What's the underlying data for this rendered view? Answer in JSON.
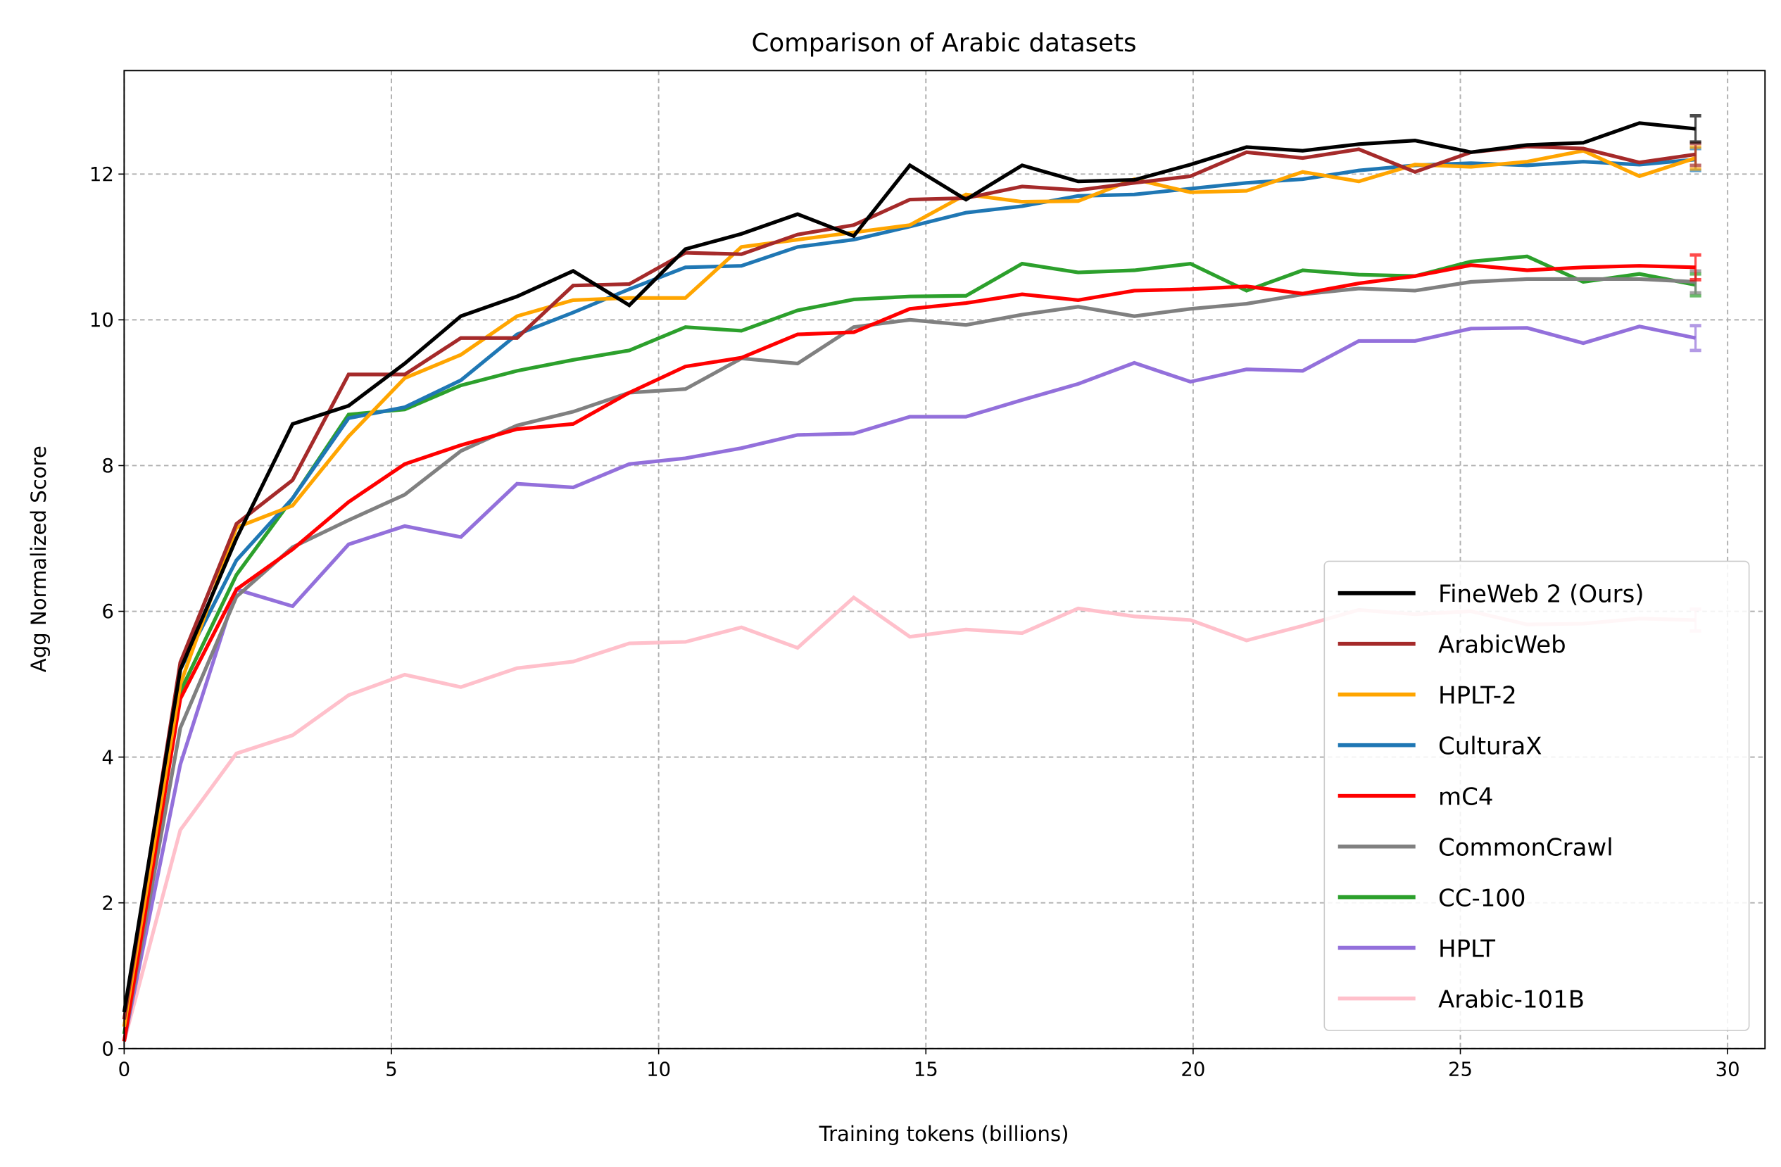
{
  "chart_data": {
    "type": "line",
    "title": "Comparison of Arabic datasets",
    "xlabel": "Training tokens (billions)",
    "ylabel": "Agg Normalized Score",
    "xlim": [
      0,
      30.7
    ],
    "ylim": [
      0,
      13.42
    ],
    "xticks": [
      0,
      5,
      10,
      15,
      20,
      25,
      30
    ],
    "yticks": [
      0,
      2,
      4,
      6,
      8,
      10,
      12
    ],
    "grid": true,
    "legend_position": "bottom-right",
    "x": [
      0,
      1.05,
      2.1,
      3.15,
      4.2,
      5.25,
      6.3,
      7.35,
      8.4,
      9.45,
      10.5,
      11.55,
      12.6,
      13.65,
      14.7,
      15.75,
      16.8,
      17.85,
      18.9,
      19.95,
      21.0,
      22.05,
      23.1,
      24.15,
      25.2,
      26.25,
      27.3,
      28.35,
      29.4
    ],
    "series": [
      {
        "name": "Arabic-101B",
        "color": "#ffc0cb",
        "error": 0.15,
        "values": [
          0.1,
          3.0,
          4.05,
          4.3,
          4.85,
          5.13,
          4.96,
          5.22,
          5.31,
          5.56,
          5.58,
          5.78,
          5.5,
          6.19,
          5.65,
          5.75,
          5.7,
          6.04,
          5.93,
          5.88,
          5.6,
          5.8,
          6.02,
          5.96,
          6.0,
          5.82,
          5.83,
          5.9,
          5.88
        ]
      },
      {
        "name": "HPLT",
        "color": "#9370db",
        "error": 0.17,
        "values": [
          0.1,
          3.9,
          6.3,
          6.07,
          6.92,
          7.17,
          7.02,
          7.75,
          7.7,
          8.02,
          8.1,
          8.24,
          8.42,
          8.44,
          8.67,
          8.67,
          8.9,
          9.12,
          9.41,
          9.15,
          9.32,
          9.3,
          9.71,
          9.71,
          9.88,
          9.89,
          9.68,
          9.91,
          9.75
        ]
      },
      {
        "name": "CC-100",
        "color": "#2ca02c",
        "error": 0.15,
        "values": [
          0.2,
          4.9,
          6.5,
          7.55,
          8.7,
          8.77,
          9.1,
          9.3,
          9.45,
          9.58,
          9.9,
          9.85,
          10.13,
          10.28,
          10.32,
          10.33,
          10.77,
          10.65,
          10.68,
          10.77,
          10.4,
          10.68,
          10.62,
          10.6,
          10.8,
          10.87,
          10.52,
          10.63,
          10.48
        ]
      },
      {
        "name": "CommonCrawl",
        "color": "#808080",
        "error": 0.15,
        "values": [
          0.1,
          4.4,
          6.2,
          6.88,
          7.25,
          7.6,
          8.2,
          8.55,
          8.74,
          9.0,
          9.05,
          9.47,
          9.4,
          9.9,
          10.0,
          9.93,
          10.07,
          10.18,
          10.05,
          10.15,
          10.22,
          10.35,
          10.43,
          10.4,
          10.52,
          10.56,
          10.56,
          10.56,
          10.52
        ]
      },
      {
        "name": "mC4",
        "color": "#ff0000",
        "error": 0.17,
        "values": [
          0.1,
          4.8,
          6.3,
          6.85,
          7.5,
          8.02,
          8.28,
          8.5,
          8.57,
          9.0,
          9.36,
          9.48,
          9.8,
          9.83,
          10.15,
          10.23,
          10.35,
          10.27,
          10.4,
          10.42,
          10.46,
          10.36,
          10.5,
          10.6,
          10.75,
          10.68,
          10.72,
          10.74,
          10.72
        ]
      },
      {
        "name": "CulturaX",
        "color": "#1f77b4",
        "error": 0.15,
        "values": [
          0.3,
          5.2,
          6.7,
          7.55,
          8.65,
          8.8,
          9.17,
          9.8,
          10.1,
          10.42,
          10.72,
          10.74,
          11.0,
          11.1,
          11.28,
          11.47,
          11.56,
          11.7,
          11.72,
          11.8,
          11.88,
          11.93,
          12.05,
          12.12,
          12.15,
          12.12,
          12.17,
          12.13,
          12.2
        ]
      },
      {
        "name": "HPLT-2",
        "color": "#ffa500",
        "error": 0.15,
        "values": [
          0.3,
          5.0,
          7.15,
          7.45,
          8.4,
          9.2,
          9.52,
          10.05,
          10.27,
          10.3,
          10.3,
          11.0,
          11.1,
          11.2,
          11.3,
          11.72,
          11.62,
          11.63,
          11.93,
          11.75,
          11.77,
          12.03,
          11.9,
          12.13,
          12.1,
          12.17,
          12.32,
          11.97,
          12.22
        ]
      },
      {
        "name": "ArabicWeb",
        "color": "#a52a2a",
        "error": 0.15,
        "values": [
          0.4,
          5.3,
          7.2,
          7.8,
          9.25,
          9.25,
          9.75,
          9.75,
          10.47,
          10.49,
          10.92,
          10.9,
          11.17,
          11.3,
          11.65,
          11.67,
          11.83,
          11.78,
          11.88,
          11.97,
          12.3,
          12.22,
          12.34,
          12.03,
          12.3,
          12.38,
          12.35,
          12.16,
          12.27
        ]
      },
      {
        "name": "FineWeb 2 (Ours)",
        "color": "#000000",
        "error": 0.18,
        "values": [
          0.5,
          5.2,
          7.0,
          8.57,
          8.82,
          9.4,
          10.05,
          10.32,
          10.67,
          10.2,
          10.97,
          11.18,
          11.45,
          11.15,
          12.12,
          11.65,
          12.12,
          11.9,
          11.92,
          12.13,
          12.37,
          12.32,
          12.41,
          12.46,
          12.3,
          12.4,
          12.43,
          12.7,
          12.62
        ]
      }
    ],
    "legend_order": [
      "FineWeb 2 (Ours)",
      "ArabicWeb",
      "HPLT-2",
      "CulturaX",
      "mC4",
      "CommonCrawl",
      "CC-100",
      "HPLT",
      "Arabic-101B"
    ]
  }
}
